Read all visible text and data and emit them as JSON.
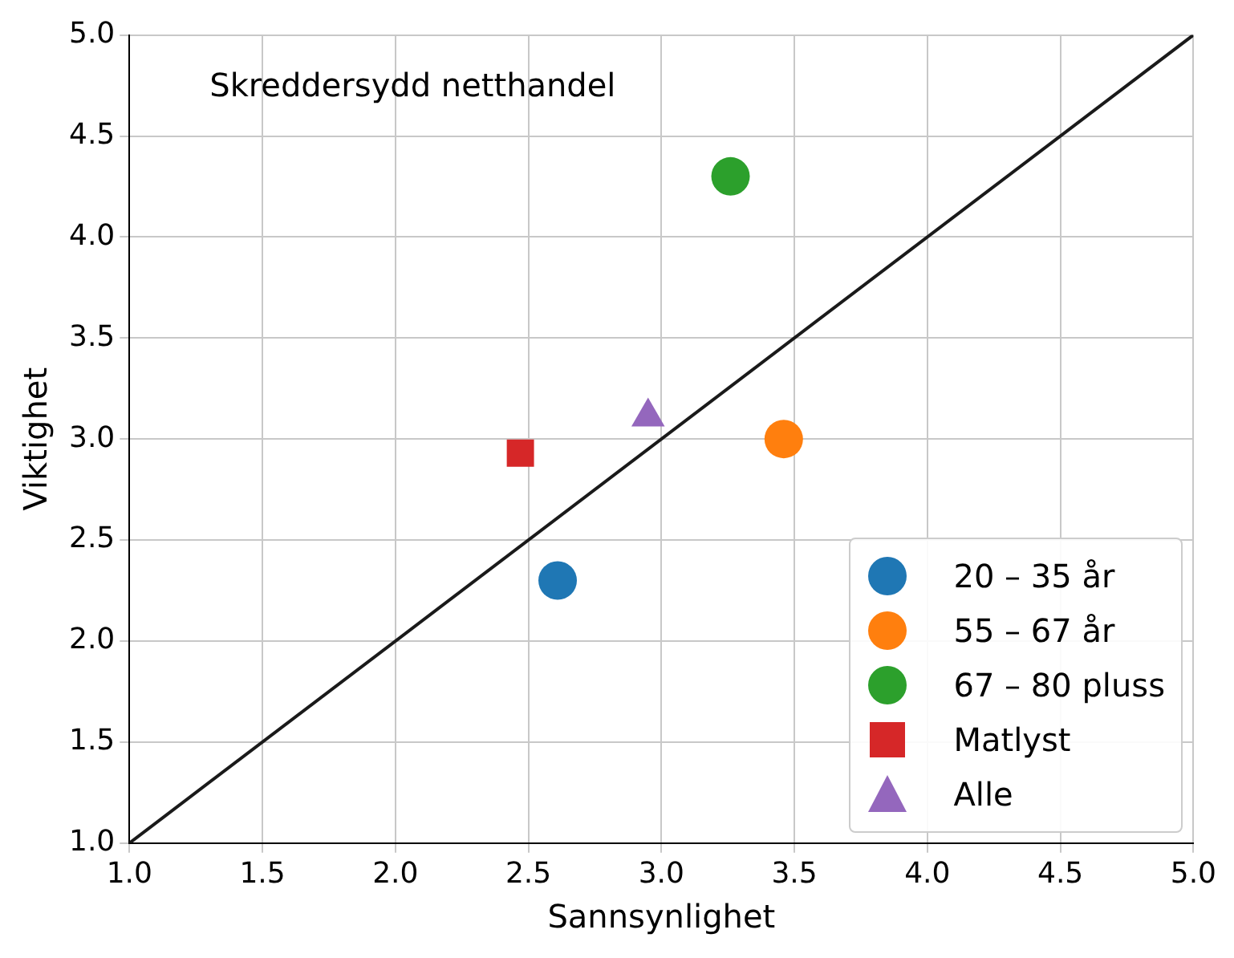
{
  "chart_data": {
    "type": "scatter",
    "xlabel": "Sannsynlighet",
    "ylabel": "Viktighet",
    "annotations": [
      "Skreddersydd netthandel"
    ],
    "xlim": [
      1.0,
      5.0
    ],
    "ylim": [
      1.0,
      5.0
    ],
    "xticks": [
      {
        "value": 1,
        "label": "1.0"
      },
      {
        "value": 1.5,
        "label": "1.5"
      },
      {
        "value": 2,
        "label": "2.0"
      },
      {
        "value": 2.5,
        "label": "2.5"
      },
      {
        "value": 3,
        "label": "3.0"
      },
      {
        "value": 3.5,
        "label": "3.5"
      },
      {
        "value": 4,
        "label": "4.0"
      },
      {
        "value": 4.5,
        "label": "4.5"
      },
      {
        "value": 5,
        "label": "5.0"
      }
    ],
    "yticks": [
      {
        "value": 1,
        "label": "1.0"
      },
      {
        "value": 1.5,
        "label": "1.5"
      },
      {
        "value": 2,
        "label": "2.0"
      },
      {
        "value": 2.5,
        "label": "2.5"
      },
      {
        "value": 3,
        "label": "3.0"
      },
      {
        "value": 3.5,
        "label": "3.5"
      },
      {
        "value": 4,
        "label": "4.0"
      },
      {
        "value": 4.5,
        "label": "4.5"
      },
      {
        "value": 5,
        "label": "5.0"
      }
    ],
    "grid": true,
    "legend": "bottom right",
    "series": [
      {
        "type": "line",
        "x": [
          1,
          5
        ],
        "values": [
          1,
          5
        ],
        "color": "#1a1a1a",
        "marker": "none",
        "line_style": "solid"
      },
      {
        "name": "20 – 35 år",
        "x": [
          2.61
        ],
        "values": [
          2.3
        ],
        "color": "#1f77b4",
        "marker": "circle"
      },
      {
        "name": "55 – 67 år",
        "x": [
          3.46
        ],
        "values": [
          3.0
        ],
        "color": "#ff7f0e",
        "marker": "circle"
      },
      {
        "name": "67 – 80 pluss",
        "x": [
          3.26
        ],
        "values": [
          4.3
        ],
        "color": "#2ca02c",
        "marker": "circle"
      },
      {
        "name": "Matlyst",
        "x": [
          2.47
        ],
        "values": [
          2.93
        ],
        "color": "#d62728",
        "marker": "square"
      },
      {
        "name": "Alle",
        "x": [
          2.95
        ],
        "values": [
          3.11
        ],
        "color": "#9467bd",
        "marker": "triangle"
      }
    ]
  }
}
